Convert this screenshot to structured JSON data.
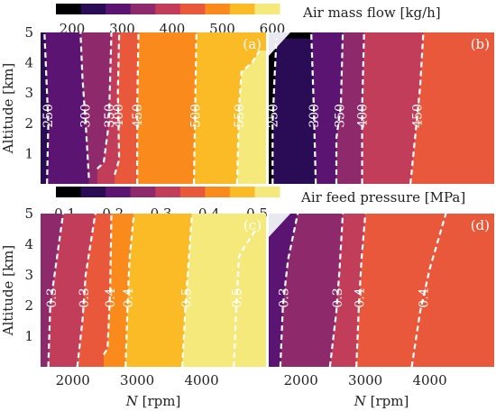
{
  "colorbars": [
    {
      "label": "Air mass flow [kg/h]",
      "ticks": [
        "200",
        "300",
        "400",
        "500",
        "600"
      ],
      "colors": [
        "#000004",
        "#2a0b55",
        "#5c1473",
        "#8e2a6b",
        "#c23d5a",
        "#e9583a",
        "#fb8a1c",
        "#fbbb26",
        "#f4e97a"
      ]
    },
    {
      "label": "Air feed pressure [MPa]",
      "ticks": [
        "0.1",
        "0.2",
        "0.3",
        "0.4",
        "0.5"
      ],
      "colors": [
        "#000004",
        "#2a0b55",
        "#5c1473",
        "#8e2a6b",
        "#c23d5a",
        "#e9583a",
        "#fb8a1c",
        "#fbbb26",
        "#f4e97a"
      ]
    }
  ],
  "chart_data": [
    {
      "type": "heatmap",
      "panel": "(a)",
      "ylabel": "Altitude [km]",
      "xlabel": "",
      "xlim": [
        1500,
        5000
      ],
      "ylim": [
        0,
        5
      ],
      "yticks": [
        "1",
        "2",
        "3",
        "4",
        "5"
      ],
      "xticks": [],
      "fills": [
        "#2a0b55",
        "#5c1473",
        "#8e2a6b",
        "#c23d5a",
        "#e9583a",
        "#fb8a1c",
        "#fbbb26",
        "#f4e97a"
      ],
      "contours": [
        {
          "label": "250",
          "x": [
            1600,
            1620,
            1590,
            1560
          ],
          "y": [
            0,
            2.0,
            3.5,
            5
          ]
        },
        {
          "label": "300",
          "x": [
            2250,
            2200,
            2150,
            2120
          ],
          "y": [
            0.2,
            2.0,
            3.5,
            5
          ]
        },
        {
          "label": "350",
          "x": [
            2380,
            2480,
            2560,
            2580,
            2600
          ],
          "y": [
            0.5,
            0.7,
            2.0,
            3.5,
            5
          ]
        },
        {
          "label": "400",
          "x": [
            2650,
            2720,
            2700,
            2720
          ],
          "y": [
            0.3,
            0.8,
            3.0,
            5
          ]
        },
        {
          "label": "450",
          "x": [
            3000,
            3000,
            3020
          ],
          "y": [
            0,
            2.5,
            5
          ]
        },
        {
          "label": "500",
          "x": [
            3880,
            3900,
            3920
          ],
          "y": [
            0,
            2.5,
            5
          ]
        },
        {
          "label": "550",
          "x": [
            4550,
            4580,
            4620,
            4780,
            4900
          ],
          "y": [
            0,
            2.5,
            3.7,
            4.0,
            4.4
          ]
        }
      ],
      "no_data_corner": false
    },
    {
      "type": "heatmap",
      "panel": "(b)",
      "ylabel": "",
      "xlabel": "",
      "xlim": [
        1500,
        5000
      ],
      "ylim": [
        0,
        5
      ],
      "yticks": [],
      "xticks": [],
      "fills": [
        "#000004",
        "#2a0b55",
        "#5c1473",
        "#8e2a6b",
        "#c23d5a",
        "#e9583a"
      ],
      "contours": [
        {
          "label": "250",
          "x": [
            1560,
            1560,
            1590,
            1620
          ],
          "y": [
            0,
            2.0,
            3.5,
            4.8
          ]
        },
        {
          "label": "300",
          "x": [
            2230,
            2200,
            2160
          ],
          "y": [
            0,
            2.5,
            5
          ]
        },
        {
          "label": "350",
          "x": [
            2550,
            2550,
            2620,
            2650
          ],
          "y": [
            0,
            1.5,
            2.6,
            5
          ]
        },
        {
          "label": "400",
          "x": [
            2950,
            2950,
            2980
          ],
          "y": [
            0,
            2.5,
            5
          ]
        },
        {
          "label": "450",
          "x": [
            3700,
            3780,
            3850,
            3900
          ],
          "y": [
            0,
            1.7,
            3.2,
            5
          ]
        }
      ],
      "no_data_corner": true
    },
    {
      "type": "heatmap",
      "panel": "(c)",
      "ylabel": "Altitude [km]",
      "xlabel": "N [rpm]",
      "xlim": [
        1500,
        5000
      ],
      "ylim": [
        0,
        5
      ],
      "yticks": [
        "1",
        "2",
        "3",
        "4",
        "5"
      ],
      "xticks": [
        "2000",
        "3000",
        "4000"
      ],
      "fills": [
        "#8e2a6b",
        "#c23d5a",
        "#e9583a",
        "#fb8a1c",
        "#fbbb26",
        "#f4e97a"
      ],
      "contours": [
        {
          "label": "0.3",
          "x": [
            1620,
            1650,
            1750,
            1850
          ],
          "y": [
            0,
            2.0,
            3.5,
            5
          ]
        },
        {
          "label": "0.3",
          "x": [
            2070,
            2150,
            2200,
            2350
          ],
          "y": [
            0,
            1.5,
            3.0,
            5
          ]
        },
        {
          "label": "0.4",
          "x": [
            2480,
            2540,
            2580,
            2600
          ],
          "y": [
            0.4,
            0.6,
            2.5,
            5
          ]
        },
        {
          "label": "0.4",
          "x": [
            2820,
            2850,
            2880,
            2950
          ],
          "y": [
            0,
            2.0,
            3.5,
            5
          ]
        },
        {
          "label": "0.5",
          "x": [
            3700,
            3750,
            3800,
            3850
          ],
          "y": [
            0,
            2.0,
            3.5,
            5
          ]
        },
        {
          "label": "0.5",
          "x": [
            4500,
            4540,
            4580,
            4660,
            4850
          ],
          "y": [
            0,
            2.0,
            3.6,
            3.9,
            4.5
          ]
        }
      ],
      "no_data_corner": false
    },
    {
      "type": "heatmap",
      "panel": "(d)",
      "ylabel": "",
      "xlabel": "N [rpm]",
      "xlim": [
        1500,
        5000
      ],
      "ylim": [
        0,
        5
      ],
      "yticks": [],
      "xticks": [
        "2000",
        "3000",
        "4000"
      ],
      "fills": [
        "#5c1473",
        "#8e2a6b",
        "#c23d5a",
        "#e9583a"
      ],
      "contours": [
        {
          "label": "0.3",
          "x": [
            1680,
            1720,
            1800,
            1950
          ],
          "y": [
            0,
            2.0,
            3.5,
            5
          ]
        },
        {
          "label": "0.3",
          "x": [
            2450,
            2550,
            2600,
            2650
          ],
          "y": [
            0,
            1.8,
            3.2,
            5
          ]
        },
        {
          "label": "0.4",
          "x": [
            2860,
            2900,
            2940,
            3000
          ],
          "y": [
            0,
            2.0,
            3.5,
            5
          ]
        },
        {
          "label": "0.4",
          "x": [
            3720,
            3850,
            4000,
            4250
          ],
          "y": [
            0,
            1.8,
            3.2,
            5
          ]
        }
      ],
      "no_data_corner": true
    }
  ]
}
